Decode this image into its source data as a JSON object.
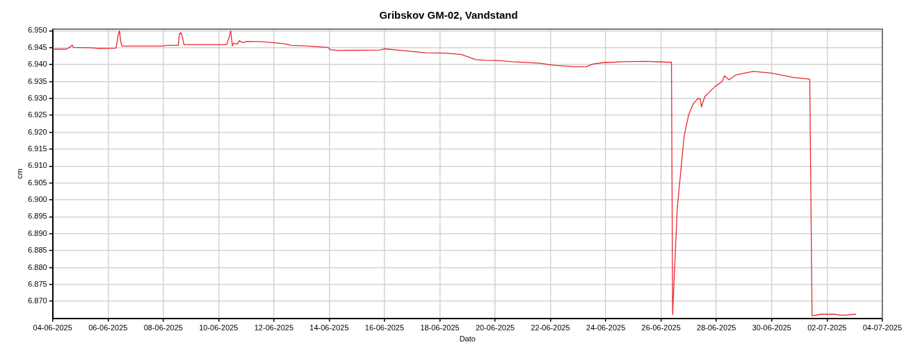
{
  "chart_data": {
    "type": "line",
    "title": "Gribskov GM-02, Vandstand",
    "xlabel": "Dato",
    "ylabel": "cm",
    "x": [
      "2025-06-04T00:00",
      "2025-06-04T12:00",
      "2025-06-04T15:00",
      "2025-06-04T17:00",
      "2025-06-04T18:00",
      "2025-06-05T10:00",
      "2025-06-05T16:00",
      "2025-06-06T07:00",
      "2025-06-06T09:00",
      "2025-06-06T10:00",
      "2025-06-06T11:00",
      "2025-06-06T12:00",
      "2025-06-08T00:00",
      "2025-06-08T03:00",
      "2025-06-08T13:00",
      "2025-06-08T14:00",
      "2025-06-08T15:00",
      "2025-06-08T16:00",
      "2025-06-08T18:00",
      "2025-06-10T07:00",
      "2025-06-10T09:00",
      "2025-06-10T10:30",
      "2025-06-10T12:00",
      "2025-06-10T13:20",
      "2025-06-10T16:00",
      "2025-06-10T18:00",
      "2025-06-10T21:00",
      "2025-06-11T00:30",
      "2025-06-11T14:00",
      "2025-06-12T08:30",
      "2025-06-12T15:00",
      "2025-06-13T06:00",
      "2025-06-13T23:00",
      "2025-06-14T01:00",
      "2025-06-14T07:00",
      "2025-06-15T20:00",
      "2025-06-16T00:00",
      "2025-06-16T11:00",
      "2025-06-17T12:00",
      "2025-06-18T06:00",
      "2025-06-18T19:00",
      "2025-06-19T07:00",
      "2025-06-19T16:00",
      "2025-06-20T05:00",
      "2025-06-20T14:00",
      "2025-06-21T15:00",
      "2025-06-22T03:00",
      "2025-06-22T21:00",
      "2025-06-23T07:00",
      "2025-06-23T13:00",
      "2025-06-23T22:00",
      "2025-06-24T17:00",
      "2025-06-25T11:00",
      "2025-06-26T00:00",
      "2025-06-26T09:00",
      "2025-06-26T10:00",
      "2025-06-26T12:00",
      "2025-06-26T14:00",
      "2025-06-26T17:00",
      "2025-06-26T20:00",
      "2025-06-27T00:00",
      "2025-06-27T04:00",
      "2025-06-27T08:00",
      "2025-06-27T10:00",
      "2025-06-27T11:00",
      "2025-06-27T14:00",
      "2025-06-27T23:00",
      "2025-06-28T05:00",
      "2025-06-28T07:00",
      "2025-06-28T11:00",
      "2025-06-28T17:00",
      "2025-06-29T08:00",
      "2025-06-30T00:00",
      "2025-06-30T19:00",
      "2025-07-01T09:00",
      "2025-07-01T11:00",
      "2025-07-01T19:00",
      "2025-07-02T06:00",
      "2025-07-02T11:00",
      "2025-07-02T16:00",
      "2025-07-03T01:00"
    ],
    "series": [
      {
        "color": "#e8282e",
        "values": [
          6.9446,
          6.9446,
          6.9452,
          6.9458,
          6.9451,
          6.945,
          6.9448,
          6.9449,
          6.949,
          6.95,
          6.947,
          6.9455,
          6.9455,
          6.9457,
          6.9457,
          6.949,
          6.9495,
          6.949,
          6.9459,
          6.9459,
          6.948,
          6.95,
          6.9456,
          6.9464,
          6.946,
          6.9471,
          6.9465,
          6.9469,
          6.9468,
          6.9462,
          6.9457,
          6.9455,
          6.9451,
          6.9444,
          6.9442,
          6.9443,
          6.9447,
          6.9443,
          6.9435,
          6.9434,
          6.943,
          6.9415,
          6.9413,
          6.9412,
          6.9409,
          6.9404,
          6.9398,
          6.9394,
          6.9394,
          6.9402,
          6.9406,
          6.9409,
          6.941,
          6.9408,
          6.9407,
          6.8661,
          6.8817,
          6.8975,
          6.9082,
          6.9189,
          6.9253,
          6.9285,
          6.93,
          6.9298,
          6.9275,
          6.9306,
          6.9336,
          6.935,
          6.9367,
          6.9355,
          6.937,
          6.938,
          6.9375,
          6.9362,
          6.9357,
          6.8657,
          6.8662,
          6.8662,
          6.8659,
          6.8659,
          6.8662
        ]
      }
    ],
    "xlim": [
      "2025-06-04",
      "2025-07-04"
    ],
    "xticks": [
      {
        "value": "2025-06-04",
        "label": "04-06-2025"
      },
      {
        "value": "2025-06-06",
        "label": "06-06-2025"
      },
      {
        "value": "2025-06-08",
        "label": "08-06-2025"
      },
      {
        "value": "2025-06-10",
        "label": "10-06-2025"
      },
      {
        "value": "2025-06-12",
        "label": "12-06-2025"
      },
      {
        "value": "2025-06-14",
        "label": "14-06-2025"
      },
      {
        "value": "2025-06-16",
        "label": "16-06-2025"
      },
      {
        "value": "2025-06-18",
        "label": "18-06-2025"
      },
      {
        "value": "2025-06-20",
        "label": "20-06-2025"
      },
      {
        "value": "2025-06-22",
        "label": "22-06-2025"
      },
      {
        "value": "2025-06-24",
        "label": "24-06-2025"
      },
      {
        "value": "2025-06-26",
        "label": "26-06-2025"
      },
      {
        "value": "2025-06-28",
        "label": "28-06-2025"
      },
      {
        "value": "2025-06-30",
        "label": "30-06-2025"
      },
      {
        "value": "2025-07-02",
        "label": "02-07-2025"
      },
      {
        "value": "2025-07-04",
        "label": "04-07-2025"
      }
    ],
    "ylim": [
      6.865,
      6.9505
    ],
    "yticks": [
      {
        "value": 6.87,
        "label": "6.870"
      },
      {
        "value": 6.875,
        "label": "6.875"
      },
      {
        "value": 6.88,
        "label": "6.880"
      },
      {
        "value": 6.885,
        "label": "6.885"
      },
      {
        "value": 6.89,
        "label": "6.890"
      },
      {
        "value": 6.895,
        "label": "6.895"
      },
      {
        "value": 6.9,
        "label": "6.900"
      },
      {
        "value": 6.905,
        "label": "6.905"
      },
      {
        "value": 6.91,
        "label": "6.910"
      },
      {
        "value": 6.915,
        "label": "6.915"
      },
      {
        "value": 6.92,
        "label": "6.920"
      },
      {
        "value": 6.925,
        "label": "6.925"
      },
      {
        "value": 6.93,
        "label": "6.930"
      },
      {
        "value": 6.935,
        "label": "6.935"
      },
      {
        "value": 6.94,
        "label": "6.940"
      },
      {
        "value": 6.945,
        "label": "6.945"
      },
      {
        "value": 6.95,
        "label": "6.950"
      }
    ],
    "grid": true,
    "legend": false,
    "marker": "none",
    "line_style": "solid"
  }
}
